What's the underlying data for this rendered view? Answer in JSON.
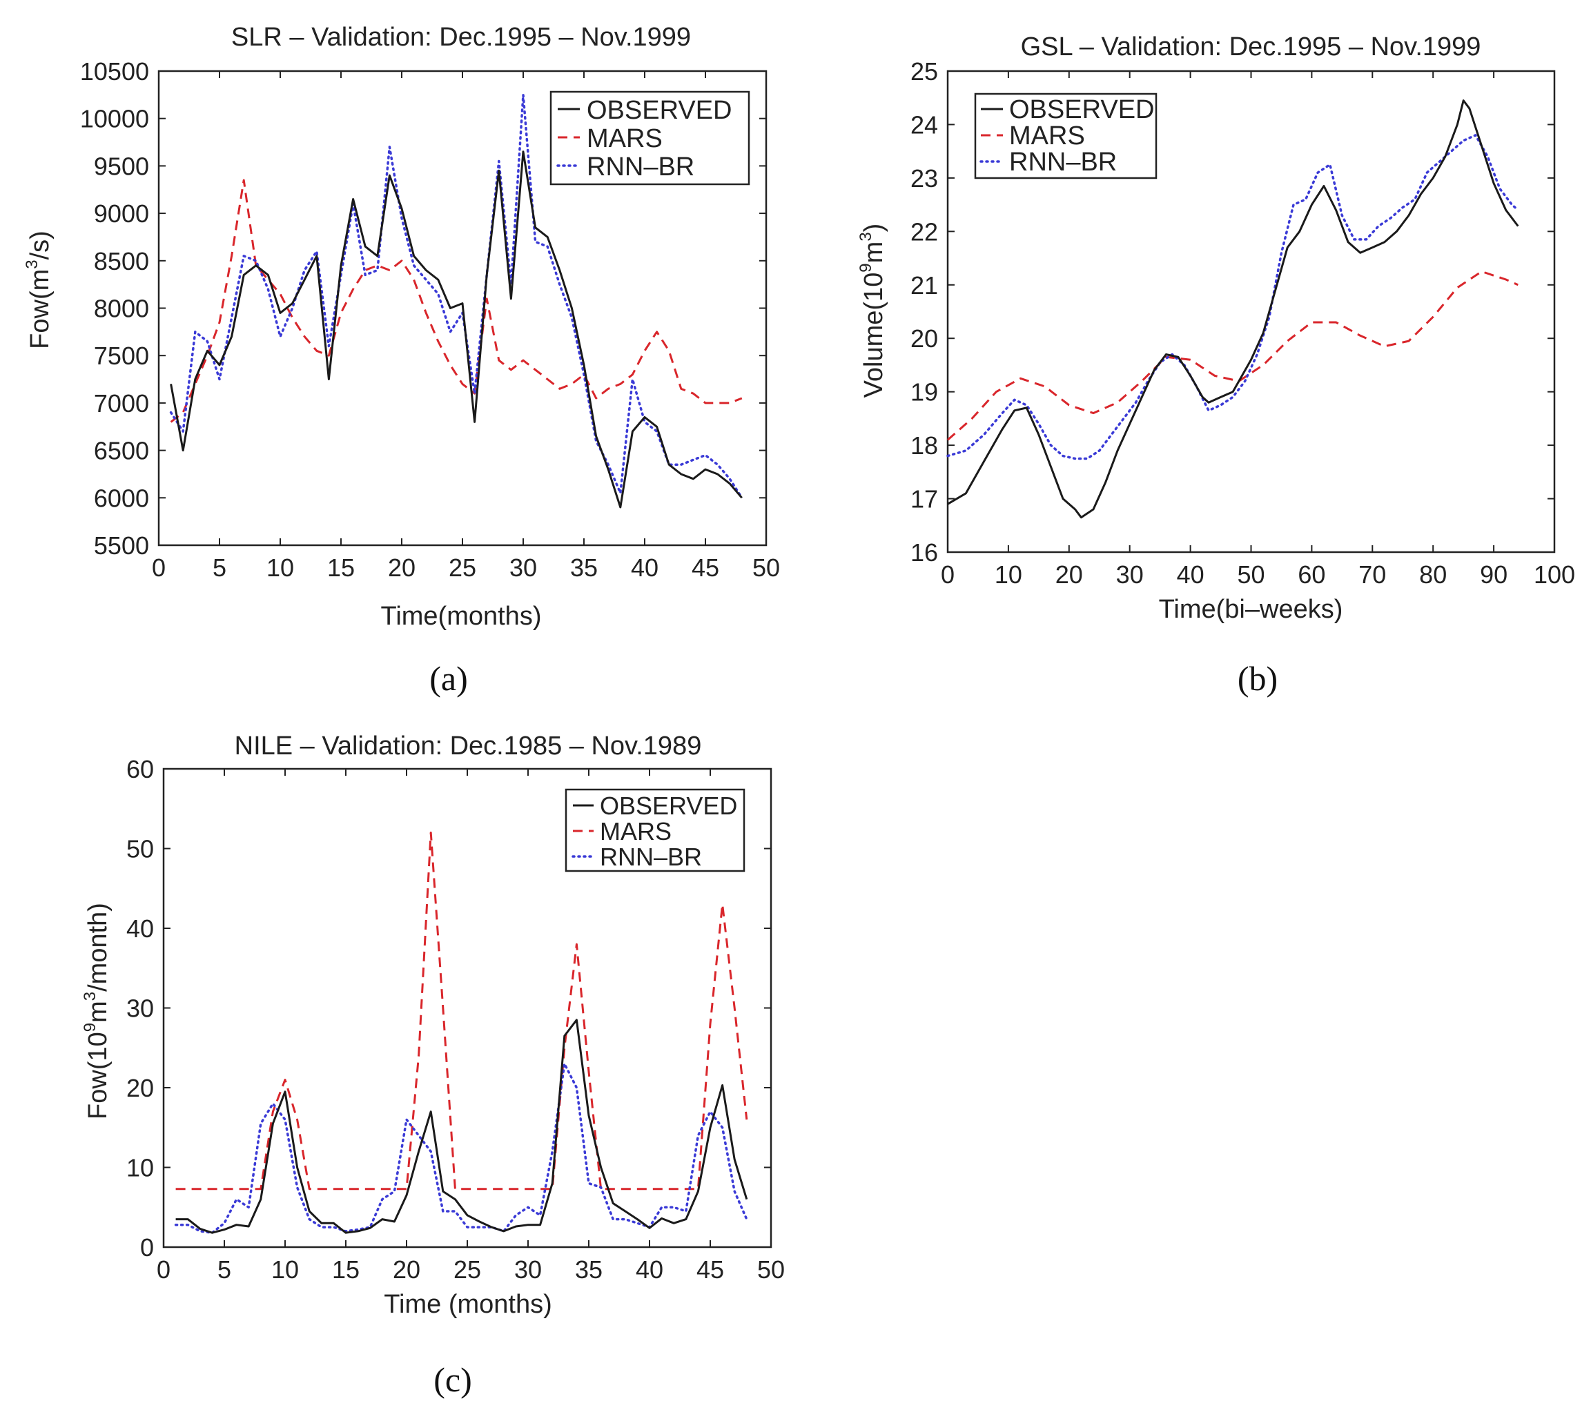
{
  "figure": {
    "panel_labels": [
      "(a)",
      "(b)",
      "(c)"
    ]
  },
  "colors": {
    "observed": "#1a1a1a",
    "mars": "#d9262b",
    "rnn_br": "#3a3ad6",
    "axis": "#222222"
  },
  "chart_data": [
    {
      "type": "line",
      "title": "SLR – Validation: Dec.1995 – Nov.1999",
      "xlabel": "Time(months)",
      "ylabel_parts": [
        "Fow(m",
        "3",
        "/s)"
      ],
      "xlim": [
        0,
        50
      ],
      "ylim": [
        5500,
        10500
      ],
      "xticks": [
        0,
        5,
        10,
        15,
        20,
        25,
        30,
        35,
        40,
        45,
        50
      ],
      "yticks": [
        5500,
        6000,
        6500,
        7000,
        7500,
        8000,
        8500,
        9000,
        9500,
        10000,
        10500
      ],
      "legend": [
        "OBSERVED",
        "MARS",
        "RNN–BR"
      ],
      "legend_position": "top-right",
      "series": [
        {
          "name": "OBSERVED",
          "style": "solid",
          "x_start": 1,
          "x_step": 1,
          "values": [
            7200,
            6500,
            7250,
            7550,
            7400,
            7700,
            8350,
            8450,
            8350,
            7950,
            8050,
            8300,
            8550,
            7250,
            8450,
            9150,
            8650,
            8550,
            9400,
            9050,
            8550,
            8400,
            8300,
            8000,
            8050,
            6800,
            8350,
            9450,
            8100,
            9650,
            8850,
            8750,
            8400,
            8000,
            7400,
            6650,
            6300,
            5900,
            6700,
            6850,
            6750,
            6350,
            6250,
            6200,
            6300,
            6250,
            6150,
            6000
          ]
        },
        {
          "name": "MARS",
          "style": "dashed",
          "x_start": 1,
          "x_step": 1,
          "values": [
            6800,
            6900,
            7200,
            7500,
            7850,
            8550,
            9350,
            8450,
            8300,
            8150,
            7900,
            7700,
            7550,
            7500,
            7950,
            8200,
            8400,
            8450,
            8400,
            8500,
            8300,
            7950,
            7650,
            7400,
            7200,
            7100,
            8100,
            7450,
            7350,
            7450,
            7350,
            7250,
            7150,
            7200,
            7300,
            7050,
            7150,
            7200,
            7300,
            7550,
            7750,
            7550,
            7150,
            7100,
            7000,
            7000,
            7000,
            7050
          ]
        },
        {
          "name": "RNN–BR",
          "style": "dotted",
          "x_start": 1,
          "x_step": 1,
          "values": [
            6900,
            6700,
            7750,
            7650,
            7250,
            7900,
            8550,
            8500,
            8200,
            7700,
            8000,
            8400,
            8600,
            7600,
            8350,
            9100,
            8350,
            8400,
            9700,
            8950,
            8450,
            8300,
            8150,
            7750,
            7950,
            7100,
            8350,
            9550,
            8250,
            10250,
            8700,
            8650,
            8250,
            7900,
            7300,
            6600,
            6350,
            6050,
            7250,
            6800,
            6700,
            6350,
            6350,
            6400,
            6450,
            6350,
            6200,
            6000
          ]
        }
      ]
    },
    {
      "type": "line",
      "title": "GSL – Validation: Dec.1995 – Nov.1999",
      "xlabel": "Time(bi–weeks)",
      "ylabel_parts": [
        "Volume(10",
        "9",
        "m",
        "3",
        ")"
      ],
      "xlim": [
        0,
        100
      ],
      "ylim": [
        16,
        25
      ],
      "xticks": [
        0,
        10,
        20,
        30,
        40,
        50,
        60,
        70,
        80,
        90,
        100
      ],
      "yticks": [
        16,
        17,
        18,
        19,
        20,
        21,
        22,
        23,
        24,
        25
      ],
      "legend": [
        "OBSERVED",
        "MARS",
        "RNN–BR"
      ],
      "legend_position": "top-left",
      "series": [
        {
          "name": "OBSERVED",
          "style": "solid",
          "x": [
            0,
            3,
            6,
            9,
            11,
            13,
            15,
            17,
            19,
            21,
            22,
            24,
            26,
            28,
            30,
            32,
            34,
            36,
            38,
            40,
            42,
            43,
            45,
            47,
            48,
            50,
            52,
            54,
            56,
            58,
            60,
            62,
            64,
            66,
            68,
            70,
            72,
            74,
            76,
            78,
            80,
            82,
            84,
            85,
            86,
            88,
            90,
            92,
            94
          ],
          "values": [
            16.9,
            17.1,
            17.7,
            18.3,
            18.65,
            18.7,
            18.2,
            17.6,
            17.0,
            16.8,
            16.65,
            16.8,
            17.3,
            17.9,
            18.4,
            18.9,
            19.4,
            19.7,
            19.65,
            19.3,
            18.9,
            18.8,
            18.9,
            19.0,
            19.2,
            19.6,
            20.1,
            20.9,
            21.7,
            22.0,
            22.5,
            22.85,
            22.4,
            21.8,
            21.6,
            21.7,
            21.8,
            22.0,
            22.3,
            22.7,
            23.0,
            23.4,
            24.0,
            24.45,
            24.3,
            23.6,
            22.9,
            22.4,
            22.1
          ]
        },
        {
          "name": "MARS",
          "style": "dashed",
          "x": [
            0,
            4,
            8,
            12,
            16,
            20,
            24,
            28,
            32,
            36,
            40,
            44,
            48,
            52,
            56,
            60,
            64,
            68,
            72,
            76,
            80,
            84,
            88,
            92,
            94
          ],
          "values": [
            18.1,
            18.5,
            19.0,
            19.25,
            19.1,
            18.75,
            18.6,
            18.8,
            19.2,
            19.65,
            19.6,
            19.3,
            19.2,
            19.5,
            19.95,
            20.3,
            20.3,
            20.05,
            19.85,
            19.95,
            20.4,
            20.95,
            21.25,
            21.1,
            21.0
          ]
        },
        {
          "name": "RNN–BR",
          "style": "dotted",
          "x": [
            0,
            3,
            6,
            9,
            11,
            13,
            15,
            17,
            19,
            21,
            23,
            25,
            27,
            29,
            31,
            33,
            35,
            37,
            39,
            41,
            43,
            45,
            47,
            49,
            51,
            53,
            55,
            57,
            59,
            61,
            63,
            65,
            67,
            69,
            71,
            73,
            75,
            77,
            79,
            81,
            83,
            85,
            87,
            89,
            91,
            93,
            94
          ],
          "values": [
            17.8,
            17.9,
            18.2,
            18.6,
            18.85,
            18.75,
            18.4,
            18.0,
            17.8,
            17.75,
            17.75,
            17.9,
            18.2,
            18.5,
            18.8,
            19.2,
            19.55,
            19.7,
            19.5,
            19.1,
            18.65,
            18.75,
            18.9,
            19.2,
            19.7,
            20.4,
            21.6,
            22.5,
            22.6,
            23.1,
            23.25,
            22.3,
            21.85,
            21.85,
            22.1,
            22.25,
            22.45,
            22.6,
            23.1,
            23.3,
            23.5,
            23.7,
            23.8,
            23.4,
            22.8,
            22.5,
            22.4
          ]
        }
      ]
    },
    {
      "type": "line",
      "title": "NILE – Validation: Dec.1985 – Nov.1989",
      "xlabel": "Time (months)",
      "ylabel_parts": [
        "Fow(10",
        "9",
        "m",
        "3",
        "/month)"
      ],
      "xlim": [
        0,
        50
      ],
      "ylim": [
        0,
        60
      ],
      "xticks": [
        0,
        5,
        10,
        15,
        20,
        25,
        30,
        35,
        40,
        45,
        50
      ],
      "yticks": [
        0,
        10,
        20,
        30,
        40,
        50,
        60
      ],
      "legend": [
        "OBSERVED",
        "MARS",
        "RNN–BR"
      ],
      "legend_position": "top-right",
      "series": [
        {
          "name": "OBSERVED",
          "style": "solid",
          "x_start": 1,
          "x_step": 1,
          "values": [
            3.5,
            3.5,
            2.3,
            1.8,
            2.2,
            2.8,
            2.6,
            6.0,
            15.5,
            19.5,
            10.0,
            4.5,
            3.0,
            3.0,
            1.8,
            2.0,
            2.4,
            3.5,
            3.2,
            6.5,
            12.0,
            17.0,
            7.0,
            6.0,
            4.0,
            3.2,
            2.5,
            2.0,
            2.6,
            2.8,
            2.8,
            8.0,
            26.5,
            28.5,
            16.5,
            10.0,
            5.5,
            4.5,
            3.5,
            2.4,
            3.6,
            3.0,
            3.5,
            7.0,
            15.0,
            20.3,
            11.0,
            6.0
          ]
        },
        {
          "name": "MARS",
          "style": "dashed",
          "x_start": 1,
          "x_step": 1,
          "values": [
            7.3,
            7.3,
            7.3,
            7.3,
            7.3,
            7.3,
            7.3,
            7.3,
            17.0,
            21.0,
            16.0,
            7.3,
            7.3,
            7.3,
            7.3,
            7.3,
            7.3,
            7.3,
            7.3,
            7.3,
            24.0,
            52.0,
            30.0,
            7.3,
            7.3,
            7.3,
            7.3,
            7.3,
            7.3,
            7.3,
            7.3,
            7.3,
            25.0,
            38.0,
            22.0,
            7.3,
            7.3,
            7.3,
            7.3,
            7.3,
            7.3,
            7.3,
            7.3,
            7.3,
            28.0,
            43.0,
            30.0,
            16.0
          ]
        },
        {
          "name": "RNN–BR",
          "style": "dotted",
          "x_start": 1,
          "x_step": 1,
          "values": [
            2.8,
            2.8,
            2.0,
            1.8,
            3.0,
            6.0,
            5.0,
            15.5,
            18.0,
            16.0,
            7.5,
            3.5,
            2.5,
            2.5,
            2.0,
            2.2,
            2.5,
            6.0,
            7.0,
            16.0,
            14.0,
            12.0,
            4.5,
            4.5,
            2.5,
            2.5,
            2.5,
            2.0,
            4.0,
            5.0,
            4.0,
            12.0,
            23.0,
            20.0,
            8.0,
            7.5,
            3.5,
            3.5,
            3.0,
            2.5,
            5.0,
            5.0,
            4.5,
            14.0,
            17.0,
            15.0,
            7.0,
            3.5
          ]
        }
      ]
    }
  ]
}
